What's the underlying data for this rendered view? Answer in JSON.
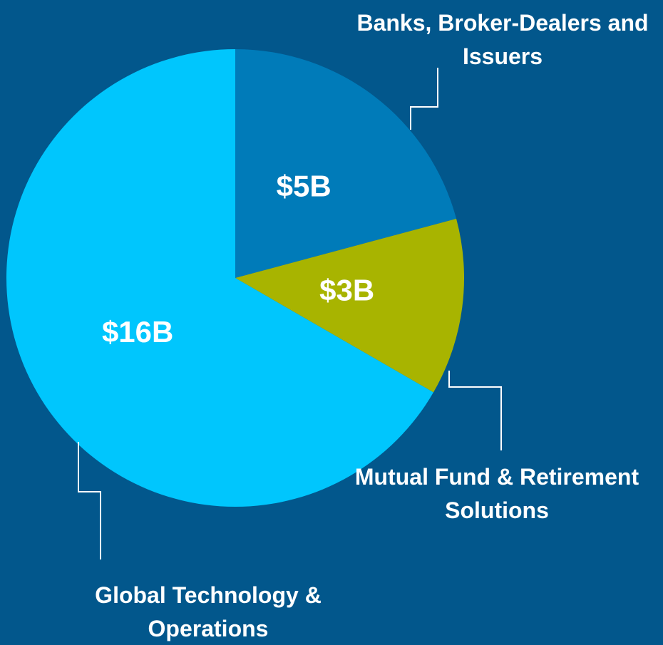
{
  "chart_data": {
    "type": "pie",
    "categories": [
      "Banks, Broker-Dealers and Issuers",
      "Mutual Fund & Retirement Solutions",
      "Global Technology & Operations"
    ],
    "values": [
      5,
      3,
      16
    ],
    "value_labels": [
      "$5B",
      "$3B",
      "$16B"
    ],
    "colors": [
      "#007bb9",
      "#a8b400",
      "#00c6fd"
    ]
  }
}
